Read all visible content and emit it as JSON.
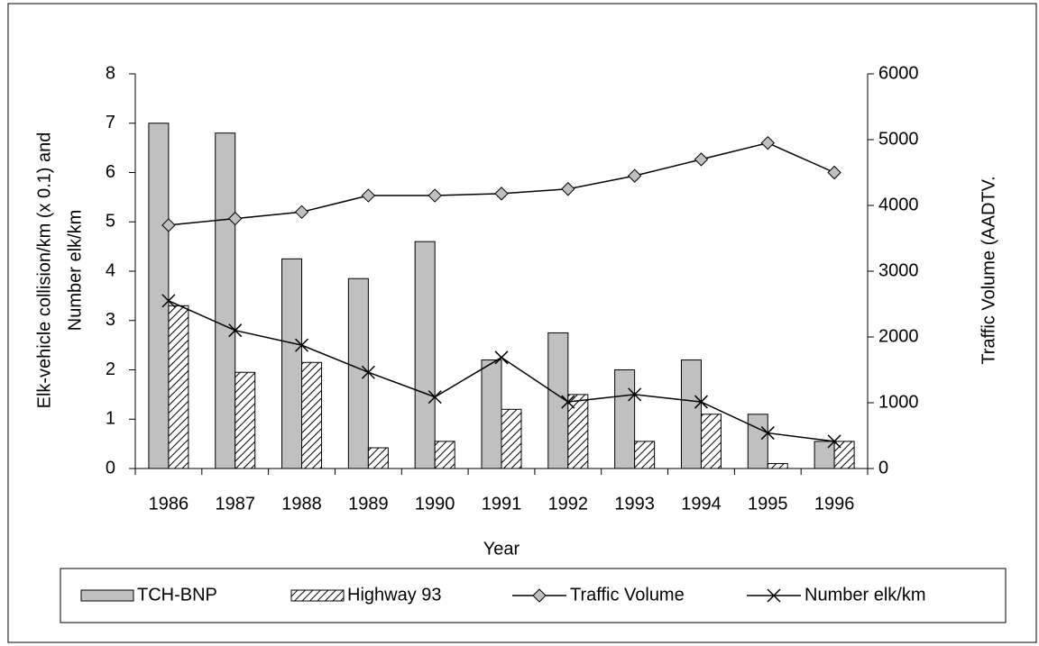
{
  "chart_data": {
    "type": "bar-line",
    "xlabel": "Year",
    "ylabel": [
      "Elk-vehicle collision/km (x 0.1) and",
      "Number elk/km"
    ],
    "y2label": "Traffic Volume (AADTV.",
    "categories": [
      "1986",
      "1987",
      "1988",
      "1989",
      "1990",
      "1991",
      "1992",
      "1993",
      "1994",
      "1995",
      "1996"
    ],
    "series": [
      {
        "name": "TCH-BNP",
        "kind": "bar",
        "color": "#c0c0c0",
        "values": [
          7.0,
          6.8,
          4.25,
          3.85,
          4.6,
          2.2,
          2.75,
          2.0,
          2.2,
          1.1,
          0.55
        ]
      },
      {
        "name": "Highway 93",
        "kind": "bar",
        "pattern": "hatch",
        "color": "#000000",
        "values": [
          3.3,
          1.95,
          2.15,
          0.42,
          0.55,
          1.2,
          1.5,
          0.55,
          1.1,
          0.1,
          0.55
        ]
      },
      {
        "name": "Traffic Volume",
        "kind": "line",
        "marker": "diamond",
        "color": "#000000",
        "axis": "y2",
        "values": [
          3700,
          3800,
          3900,
          4150,
          4150,
          4180,
          4250,
          4450,
          4700,
          4950,
          4500
        ]
      },
      {
        "name": "Number elk/km",
        "kind": "line",
        "marker": "x",
        "color": "#000000",
        "values": [
          3.4,
          2.8,
          2.5,
          1.95,
          1.45,
          2.25,
          1.35,
          1.5,
          1.35,
          0.72,
          0.55
        ]
      }
    ],
    "ylim": [
      0,
      8
    ],
    "yticks": [
      0,
      1,
      2,
      3,
      4,
      5,
      6,
      7,
      8
    ],
    "y2lim": [
      0,
      6000
    ],
    "y2ticks": [
      0,
      1000,
      2000,
      3000,
      4000,
      5000,
      6000
    ],
    "grid": false,
    "legend": "bottom"
  }
}
